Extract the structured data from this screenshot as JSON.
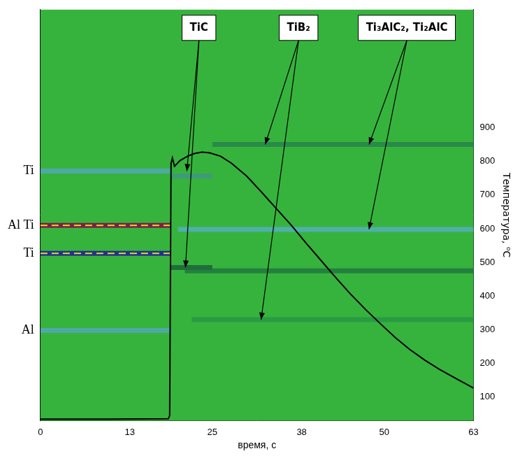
{
  "chart_data": {
    "type": "line",
    "x_label": "время, с",
    "y_label": "Температура, ⁰C",
    "xlim": [
      0,
      63
    ],
    "xticks": [
      0,
      13,
      25,
      38,
      50,
      63
    ],
    "ylim": [
      30,
      1250
    ],
    "yticks": [
      100,
      200,
      300,
      400,
      500,
      600,
      700,
      800,
      900
    ],
    "y2lim": [
      30,
      1250
    ],
    "y2ticks": [
      {
        "value": 771,
        "label": "Ti"
      },
      {
        "value": 610,
        "label": "Al Ti"
      },
      {
        "value": 527,
        "label": "Ti"
      },
      {
        "value": 298,
        "label": "Al"
      }
    ],
    "grid": false,
    "color": "#000000",
    "x": [
      0,
      10,
      18.6,
      18.8,
      19.0,
      19.2,
      19.5,
      20.3,
      21.4,
      22.4,
      23.5,
      24.6,
      26.2,
      27.8,
      30.0,
      32.1,
      34.3,
      36.5,
      38.6,
      40.8,
      43.0,
      45.1,
      47.3,
      49.4,
      51.6,
      53.7,
      55.9,
      58.0,
      60.2,
      63.0
    ],
    "values": [
      35,
      35,
      36,
      45,
      794,
      810,
      785,
      802,
      815,
      823,
      827,
      825,
      815,
      794,
      756,
      710,
      660,
      610,
      558,
      506,
      454,
      406,
      360,
      319,
      277,
      242,
      210,
      183,
      158,
      127
    ],
    "bands": [
      {
        "x": [
          0,
          19
        ],
        "value": 771,
        "color": "#4fa9a3"
      },
      {
        "x": [
          0,
          19
        ],
        "value": 610,
        "color": "#7a2040",
        "line_style": "dashed"
      },
      {
        "x": [
          0,
          19
        ],
        "value": 527,
        "color": "#23308c",
        "line_style": "dashed"
      },
      {
        "x": [
          0,
          19
        ],
        "value": 298,
        "color": "#4fa9a3"
      },
      {
        "x": [
          19,
          25
        ],
        "value": 756,
        "color": "#3f9a78"
      },
      {
        "x": [
          19,
          25
        ],
        "value": 485,
        "color": "#1f6e3a"
      },
      {
        "x": [
          25,
          63
        ],
        "value": 850,
        "color": "#2a8a48"
      },
      {
        "x": [
          20,
          63
        ],
        "value": 598,
        "color": "#4fb0a8"
      },
      {
        "x": [
          21,
          63
        ],
        "value": 475,
        "color": "#23803e"
      },
      {
        "x": [
          22,
          63
        ],
        "value": 330,
        "color": "#2a9a45"
      }
    ],
    "annotations": [
      {
        "text": "TiC",
        "points": [
          [
            21.3,
            771
          ],
          [
            21.1,
            485
          ]
        ]
      },
      {
        "text": "TiB₂",
        "points": [
          [
            32.7,
            850
          ],
          [
            32.1,
            330
          ]
        ]
      },
      {
        "text": "Ti₃AlC₂, Ti₂AlC",
        "points": [
          [
            47.8,
            850
          ],
          [
            47.8,
            598
          ]
        ]
      }
    ]
  }
}
